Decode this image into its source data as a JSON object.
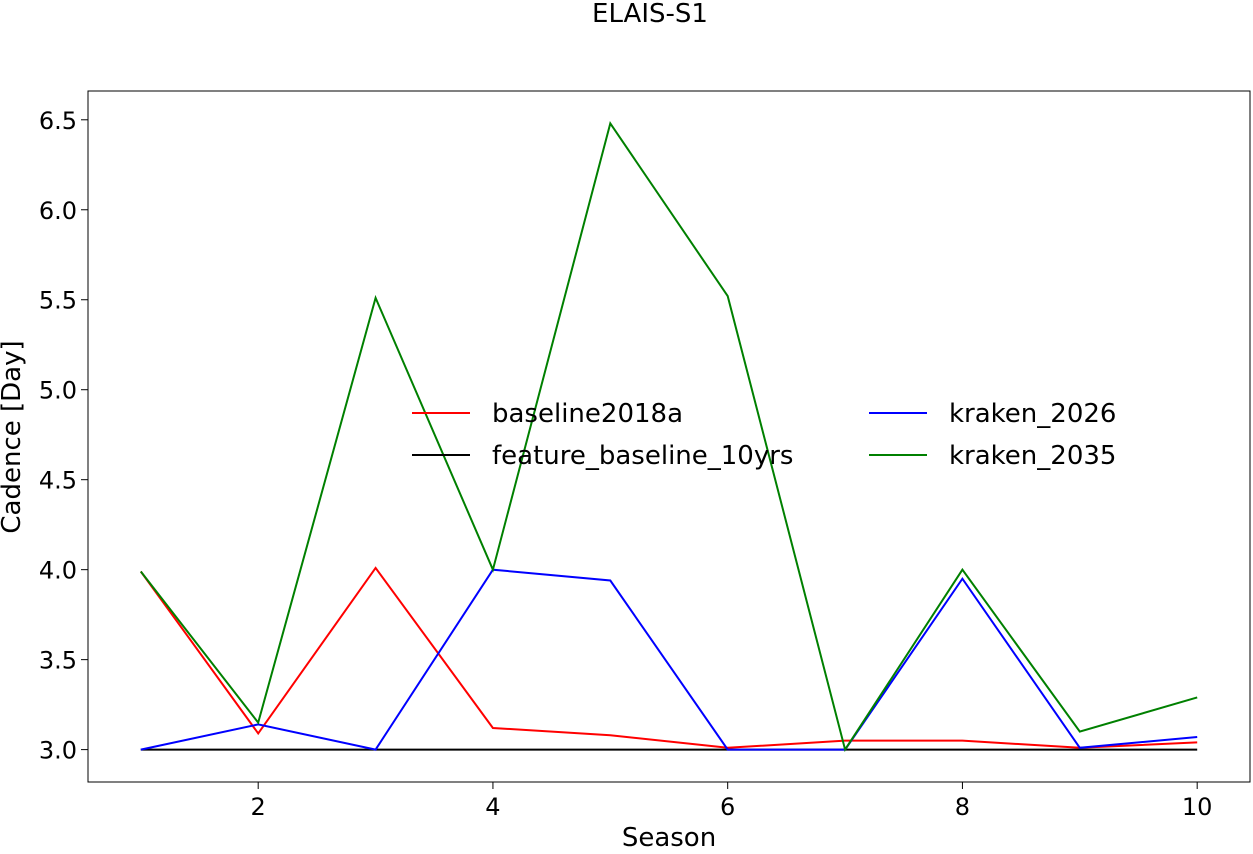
{
  "chart_data": {
    "type": "line",
    "title": "ELAIS-S1",
    "xlabel": "Season",
    "ylabel": "Cadence [Day]",
    "xlim": [
      0.55,
      10.45
    ],
    "ylim": [
      2.82,
      6.66
    ],
    "xticks": [
      2,
      4,
      6,
      8,
      10
    ],
    "yticks": [
      3.0,
      3.5,
      4.0,
      4.5,
      5.0,
      5.5,
      6.0,
      6.5
    ],
    "grid": false,
    "legend": {
      "placement": "center",
      "columns": 2
    },
    "x": [
      1,
      2,
      3,
      4,
      5,
      6,
      7,
      8,
      9,
      10
    ],
    "series": [
      {
        "name": "baseline2018a",
        "color": "#ff0000",
        "values": [
          3.99,
          3.09,
          4.01,
          3.12,
          3.08,
          3.01,
          3.05,
          3.05,
          3.01,
          3.04
        ]
      },
      {
        "name": "feature_baseline_10yrs",
        "color": "#000000",
        "values": [
          3.0,
          3.0,
          3.0,
          3.0,
          3.0,
          3.0,
          3.0,
          3.0,
          3.0,
          3.0
        ]
      },
      {
        "name": "kraken_2026",
        "color": "#0000ff",
        "values": [
          3.0,
          3.14,
          3.0,
          4.0,
          3.94,
          3.0,
          3.0,
          3.95,
          3.01,
          3.07
        ]
      },
      {
        "name": "kraken_2035",
        "color": "#008000",
        "values": [
          3.99,
          3.15,
          5.51,
          4.0,
          6.48,
          5.52,
          3.0,
          4.0,
          3.1,
          3.29
        ]
      }
    ]
  }
}
